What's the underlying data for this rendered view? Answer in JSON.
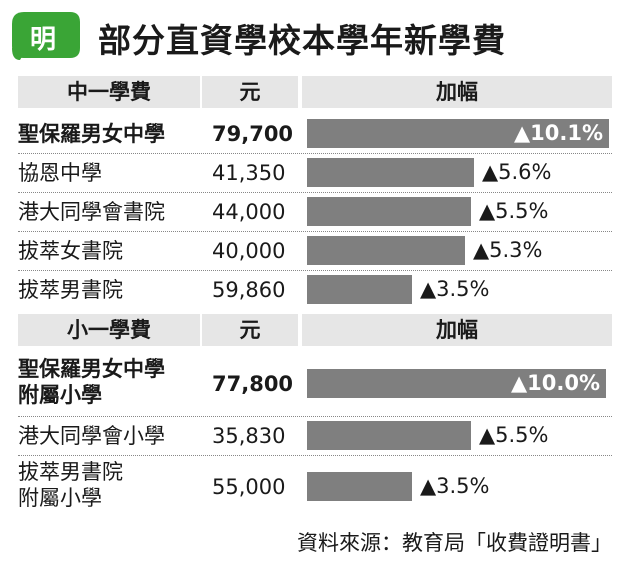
{
  "header": {
    "logo_text": "明",
    "title": "部分直資學校本學年新學費"
  },
  "colors": {
    "bar": "#7f7f7f",
    "header_bg": "#e6e6e6",
    "logo_green": "#3aa536"
  },
  "source": "資料來源：教育局「收費證明書」",
  "chart_data": [
    {
      "type": "table",
      "headers": [
        "中一學費",
        "元",
        "加幅"
      ],
      "rows": [
        {
          "school": "聖保羅男女中學",
          "fee": "79,700",
          "increase_label": "▲10.1%",
          "increase": 10.1,
          "highlight": true
        },
        {
          "school": "協恩中學",
          "fee": "41,350",
          "increase_label": "▲5.6%",
          "increase": 5.6,
          "highlight": false
        },
        {
          "school": "港大同學會書院",
          "fee": "44,000",
          "increase_label": "▲5.5%",
          "increase": 5.5,
          "highlight": false
        },
        {
          "school": "拔萃女書院",
          "fee": "40,000",
          "increase_label": "▲5.3%",
          "increase": 5.3,
          "highlight": false
        },
        {
          "school": "拔萃男書院",
          "fee": "59,860",
          "increase_label": "▲3.5%",
          "increase": 3.5,
          "highlight": false
        }
      ]
    },
    {
      "type": "table",
      "headers": [
        "小一學費",
        "元",
        "加幅"
      ],
      "rows": [
        {
          "school": "聖保羅男女中學\n附屬小學",
          "fee": "77,800",
          "increase_label": "▲10.0%",
          "increase": 10.0,
          "highlight": true
        },
        {
          "school": "港大同學會小學",
          "fee": "35,830",
          "increase_label": "▲5.5%",
          "increase": 5.5,
          "highlight": false
        },
        {
          "school": "拔萃男書院\n附屬小學",
          "fee": "55,000",
          "increase_label": "▲3.5%",
          "increase": 3.5,
          "highlight": false
        }
      ]
    }
  ]
}
